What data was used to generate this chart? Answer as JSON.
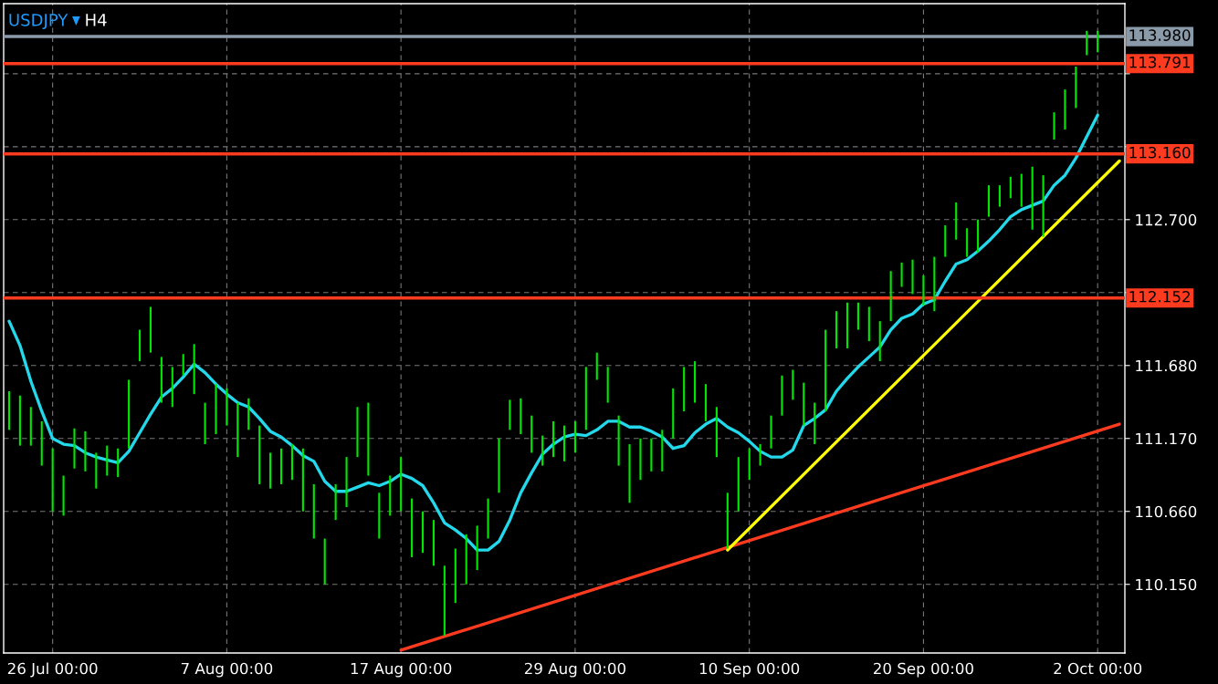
{
  "chart_data": {
    "type": "bar",
    "title": "USDJPY",
    "subtitle": "H4",
    "categories": [
      null,
      null,
      null,
      null,
      "26 Jul 00:00",
      null,
      null,
      null,
      null,
      null,
      null,
      null,
      null,
      null,
      null,
      null,
      null,
      null,
      null,
      null,
      "7 Aug 00:00",
      null,
      null,
      null,
      null,
      null,
      null,
      null,
      null,
      null,
      null,
      null,
      null,
      null,
      null,
      null,
      "17 Aug 00:00",
      null,
      null,
      null,
      null,
      null,
      null,
      null,
      null,
      null,
      null,
      null,
      null,
      null,
      null,
      null,
      "29 Aug 00:00",
      null,
      null,
      null,
      null,
      null,
      null,
      null,
      null,
      null,
      null,
      null,
      null,
      null,
      null,
      null,
      "10 Sep 00:00",
      null,
      null,
      null,
      null,
      null,
      null,
      null,
      null,
      null,
      null,
      null,
      null,
      null,
      null,
      null,
      "20 Sep 00:00",
      null,
      null,
      null,
      null,
      null,
      null,
      null,
      null,
      null,
      null,
      null,
      null,
      null,
      null,
      null,
      "2 Oct 00:00",
      null,
      null
    ],
    "series": [
      {
        "color": "#00e600",
        "base": [
          111.23,
          111.12,
          111.12,
          110.98,
          110.66,
          110.63,
          110.96,
          110.94,
          110.82,
          110.91,
          110.9,
          111.1,
          111.71,
          111.77,
          111.42,
          111.39,
          111.61,
          111.48,
          111.13,
          111.2,
          111.26,
          111.04,
          111.23,
          110.85,
          110.82,
          110.85,
          110.88,
          110.66,
          110.47,
          110.15,
          110.6,
          110.69,
          111.04,
          110.91,
          110.47,
          110.63,
          110.66,
          110.34,
          110.37,
          110.28,
          109.79,
          110.02,
          110.15,
          110.25,
          110.47,
          110.79,
          111.23,
          111.2,
          111.07,
          110.98,
          111.04,
          111.01,
          111.07,
          111.23,
          111.58,
          111.42,
          110.98,
          110.72,
          110.88,
          110.94,
          110.94,
          111.17,
          111.36,
          111.42,
          111.29,
          111.04,
          110.4,
          110.66,
          110.88,
          110.98,
          111.1,
          111.33,
          111.44,
          111.26,
          111.13,
          111.36,
          111.8,
          111.8,
          111.93,
          111.85,
          111.71,
          111.99,
          112.23,
          112.18,
          112.1,
          112.06,
          112.44,
          112.56,
          112.44,
          112.47,
          112.72,
          112.79,
          112.85,
          112.79,
          112.63,
          112.58,
          113.26,
          113.33,
          113.48,
          113.85,
          113.87,
          null,
          null
        ],
        "values": [
          0.27,
          0.35,
          0.27,
          0.31,
          0.44,
          0.28,
          0.28,
          0.28,
          0.25,
          0.21,
          0.2,
          0.48,
          0.22,
          0.32,
          0.32,
          0.28,
          0.15,
          0.35,
          0.29,
          0.35,
          0.26,
          0.38,
          0.22,
          0.41,
          0.25,
          0.25,
          0.25,
          0.44,
          0.38,
          0.32,
          0.25,
          0.35,
          0.35,
          0.51,
          0.32,
          0.28,
          0.38,
          0.41,
          0.29,
          0.32,
          0.49,
          0.38,
          0.35,
          0.31,
          0.28,
          0.38,
          0.21,
          0.25,
          0.26,
          0.21,
          0.25,
          0.25,
          0.22,
          0.44,
          0.19,
          0.25,
          0.35,
          0.41,
          0.29,
          0.23,
          0.29,
          0.35,
          0.31,
          0.29,
          0.26,
          0.35,
          0.39,
          0.38,
          0.22,
          0.15,
          0.23,
          0.28,
          0.21,
          0.3,
          0.29,
          0.57,
          0.26,
          0.32,
          0.19,
          0.24,
          0.28,
          0.35,
          0.17,
          0.24,
          0.21,
          0.38,
          0.22,
          0.26,
          0.2,
          0.23,
          0.22,
          0.15,
          0.15,
          0.23,
          0.44,
          0.43,
          0.19,
          0.28,
          0.29,
          0.17,
          0.15,
          null,
          null
        ]
      },
      {
        "type": "line",
        "color": "#22d8ea",
        "values": [
          111.99,
          111.82,
          111.57,
          111.36,
          111.17,
          111.13,
          111.12,
          111.07,
          111.04,
          111.02,
          111.0,
          111.08,
          111.21,
          111.34,
          111.46,
          111.52,
          111.6,
          111.69,
          111.63,
          111.55,
          111.48,
          111.42,
          111.39,
          111.31,
          111.22,
          111.18,
          111.12,
          111.05,
          111.01,
          110.87,
          110.8,
          110.8,
          110.83,
          110.86,
          110.84,
          110.87,
          110.92,
          110.89,
          110.84,
          110.72,
          110.58,
          110.53,
          110.47,
          110.39,
          110.39,
          110.45,
          110.6,
          110.79,
          110.93,
          111.06,
          111.13,
          111.18,
          111.2,
          111.19,
          111.23,
          111.29,
          111.29,
          111.25,
          111.25,
          111.22,
          111.18,
          111.1,
          111.12,
          111.21,
          111.27,
          111.31,
          111.25,
          111.21,
          111.15,
          111.08,
          111.04,
          111.04,
          111.09,
          111.26,
          111.31,
          111.37,
          111.5,
          111.59,
          111.67,
          111.74,
          111.81,
          111.93,
          112.01,
          112.04,
          112.11,
          112.14,
          112.27,
          112.39,
          112.42,
          112.48,
          112.55,
          112.63,
          112.72,
          112.77,
          112.8,
          112.83,
          112.94,
          113.01,
          113.13,
          113.28,
          113.43,
          null,
          null
        ]
      },
      {
        "type": "line",
        "color": "#ff3b1f",
        "values": [
          null,
          null,
          null,
          null,
          null,
          null,
          null,
          null,
          null,
          null,
          null,
          null,
          null,
          null,
          null,
          null,
          null,
          null,
          null,
          null,
          null,
          null,
          null,
          null,
          null,
          null,
          null,
          null,
          null,
          null,
          null,
          null,
          null,
          null,
          null,
          null,
          109.69,
          null,
          null,
          null,
          null,
          null,
          null,
          null,
          null,
          null,
          null,
          null,
          null,
          null,
          null,
          null,
          null,
          null,
          null,
          null,
          null,
          null,
          null,
          null,
          null,
          null,
          null,
          null,
          null,
          null,
          null,
          null,
          null,
          null,
          null,
          null,
          null,
          null,
          null,
          null,
          null,
          null,
          null,
          null,
          null,
          null,
          null,
          null,
          null,
          null,
          null,
          null,
          null,
          null,
          null,
          null,
          null,
          null,
          null,
          null,
          null,
          null,
          null,
          null,
          null,
          null,
          111.27
        ]
      },
      {
        "type": "line",
        "color": "#ffff00",
        "values": [
          null,
          null,
          null,
          null,
          null,
          null,
          null,
          null,
          null,
          null,
          null,
          null,
          null,
          null,
          null,
          null,
          null,
          null,
          null,
          null,
          null,
          null,
          null,
          null,
          null,
          null,
          null,
          null,
          null,
          null,
          null,
          null,
          null,
          null,
          null,
          null,
          null,
          null,
          null,
          null,
          null,
          null,
          null,
          null,
          null,
          null,
          null,
          null,
          null,
          null,
          null,
          null,
          null,
          null,
          null,
          null,
          null,
          null,
          null,
          null,
          null,
          null,
          null,
          null,
          null,
          null,
          110.39,
          null,
          null,
          null,
          null,
          null,
          null,
          null,
          null,
          null,
          null,
          null,
          null,
          null,
          null,
          null,
          null,
          null,
          null,
          null,
          null,
          null,
          null,
          null,
          null,
          null,
          null,
          null,
          null,
          null,
          null,
          null,
          null,
          null,
          null,
          null,
          113.11
        ]
      }
    ],
    "ylim": [
      109.67,
      114.21
    ],
    "yticks": [
      {
        "value": 110.15,
        "label": "110.150"
      },
      {
        "value": 110.66,
        "label": "110.660"
      },
      {
        "value": 111.17,
        "label": "111.170"
      },
      {
        "value": 111.68,
        "label": "111.680"
      },
      {
        "value": 112.19,
        "label": null
      },
      {
        "value": 112.7,
        "label": "112.700"
      },
      {
        "value": 113.21,
        "label": null
      },
      {
        "value": 113.72,
        "label": null
      }
    ],
    "ref_lines": [
      {
        "axis": "y",
        "value": 113.98,
        "label": "113.980",
        "color": "#8a9aa8"
      },
      {
        "axis": "y",
        "value": 113.791,
        "label": "113.791",
        "color": "#ff3b1f"
      },
      {
        "axis": "y",
        "value": 113.16,
        "label": "113.160",
        "color": "#ff3b1f"
      },
      {
        "axis": "y",
        "value": 112.152,
        "label": "112.152",
        "color": "#ff3b1f"
      }
    ],
    "grid": true
  }
}
